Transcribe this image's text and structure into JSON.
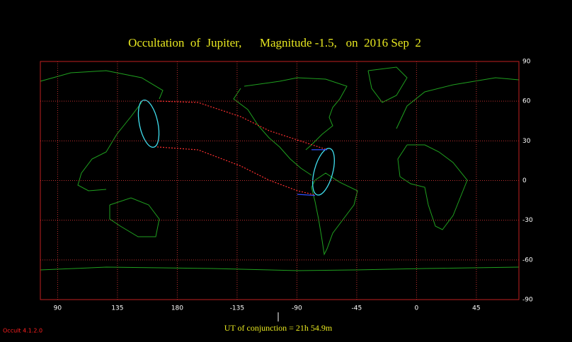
{
  "chart_data": {
    "type": "map",
    "title": "Occultation  of  Jupiter,      Magnitude -1.5,   on  2016 Sep  2",
    "footer": "UT of conjunction = 21h 54.9m",
    "version": "Occult 4.1.2.0",
    "xlim": [
      77,
      437
    ],
    "ylim": [
      -90,
      90
    ],
    "xticks": [
      90,
      135,
      180,
      {
        "value": 225,
        "label": "-135"
      },
      {
        "value": 270,
        "label": "-90"
      },
      {
        "value": 315,
        "label": "-45"
      },
      {
        "value": 360,
        "label": "0"
      },
      {
        "value": 405,
        "label": "45"
      }
    ],
    "yticks": [
      90,
      60,
      30,
      0,
      -30,
      -60,
      -90
    ],
    "grid": true,
    "grid_color": "#c03030",
    "border_color": "#c02020",
    "paths": [
      {
        "color": "#ff3030",
        "x": [
          164.9,
          195.7,
          227.7,
          249,
          270.3,
          292.7
        ],
        "y": [
          60.1,
          59,
          48.3,
          37.7,
          30.7,
          23.3
        ]
      },
      {
        "color": "#ff3030",
        "x": [
          164.9,
          195.7,
          227.7,
          249,
          270.3,
          283.6
        ],
        "y": [
          25.4,
          23.2,
          11,
          0.3,
          -7.7,
          -10.9
        ]
      },
      {
        "color": "#3050ff",
        "x": [
          281,
          292.7
        ],
        "y": [
          23.3,
          23.3
        ]
      },
      {
        "color": "#3050ff",
        "x": [
          270.3,
          283.6
        ],
        "y": [
          -10.4,
          -11.3
        ]
      }
    ]
  }
}
